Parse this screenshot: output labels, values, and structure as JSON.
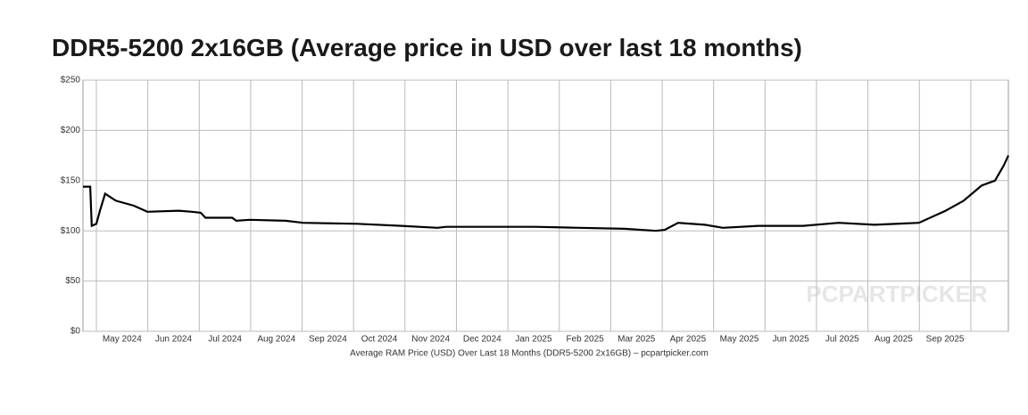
{
  "chart_data": {
    "type": "line",
    "title": "DDR5-5200 2x16GB (Average price in USD over last 18 months)",
    "caption": "Average RAM Price (USD) Over Last 18 Months (DDR5-5200 2x16GB) – pcpartpicker.com",
    "watermark": "PCPARTPICKER",
    "x": [
      -0.26,
      -0.12,
      -0.09,
      0,
      0.07,
      0.17,
      0.38,
      0.73,
      0.99,
      1.6,
      1.86,
      2.03,
      2.12,
      2.64,
      2.72,
      2.98,
      3.68,
      4.02,
      5.07,
      5.93,
      6.63,
      6.8,
      7.84,
      8.53,
      9.4,
      10.27,
      10.88,
      11.05,
      11.31,
      11.83,
      12.18,
      12.87,
      13.74,
      14.43,
      15.13,
      15.99,
      16.51,
      16.86,
      17.21,
      17.47,
      17.64,
      17.73
    ],
    "series": [
      {
        "color": "#000000",
        "values": [
          144,
          144,
          105,
          107,
          120,
          137,
          130,
          125,
          119,
          120,
          119,
          118,
          113,
          113,
          110,
          111,
          110,
          108,
          107,
          105,
          103,
          104,
          104,
          104,
          103,
          102,
          100,
          101,
          108,
          106,
          103,
          105,
          105,
          108,
          106,
          108,
          120,
          130,
          145,
          150,
          165,
          175
        ]
      }
    ],
    "xlim": [
      -0.26,
      17.73
    ],
    "xticks": [
      {
        "value": 0,
        "label": "May 2024"
      },
      {
        "value": 1,
        "label": "Jun 2024"
      },
      {
        "value": 2,
        "label": "Jul 2024"
      },
      {
        "value": 3,
        "label": "Aug 2024"
      },
      {
        "value": 4,
        "label": "Sep 2024"
      },
      {
        "value": 5,
        "label": "Oct 2024"
      },
      {
        "value": 6,
        "label": "Nov 2024"
      },
      {
        "value": 7,
        "label": "Dec 2024"
      },
      {
        "value": 8,
        "label": "Jan 2025"
      },
      {
        "value": 9,
        "label": "Feb 2025"
      },
      {
        "value": 10,
        "label": "Mar 2025"
      },
      {
        "value": 11,
        "label": "Apr 2025"
      },
      {
        "value": 12,
        "label": "May 2025"
      },
      {
        "value": 13,
        "label": "Jun 2025"
      },
      {
        "value": 14,
        "label": "Jul 2025"
      },
      {
        "value": 15,
        "label": "Aug 2025"
      },
      {
        "value": 16,
        "label": "Sep 2025"
      },
      {
        "value": 17,
        "label": null
      }
    ],
    "ylim": [
      0,
      250
    ],
    "yticks": [
      {
        "value": 0,
        "label": "$0"
      },
      {
        "value": 50,
        "label": "$50"
      },
      {
        "value": 100,
        "label": "$100"
      },
      {
        "value": 150,
        "label": "$150"
      },
      {
        "value": 200,
        "label": "$200"
      },
      {
        "value": 250,
        "label": "$250"
      }
    ],
    "grid": true
  }
}
